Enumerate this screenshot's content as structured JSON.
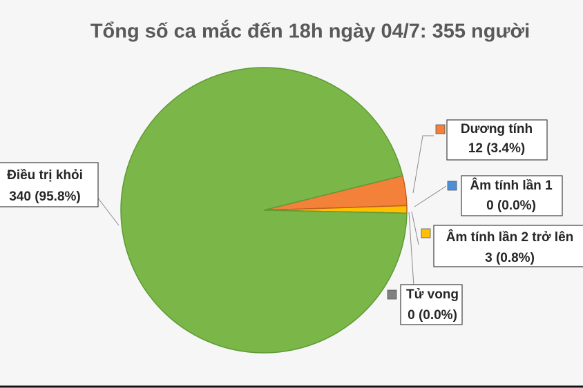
{
  "chart_data": {
    "type": "pie",
    "title": "Tổng số ca mắc đến 18h ngày 04/7: 355 người",
    "categories": [
      "Dương tính",
      "Âm tính lần 1",
      "Âm tính lần 2 trở lên",
      "Tử vong",
      "Điều trị khỏi"
    ],
    "values": [
      12,
      0,
      3,
      0,
      340
    ],
    "value_labels": [
      "12 (3.4%)",
      "0 (0.0%)",
      "3 (0.8%)",
      "0 (0.0%)",
      "340 (95.8%)"
    ],
    "colors": [
      "#f4813a",
      "#4a90d9",
      "#ffc000",
      "#808080",
      "#7ab648"
    ]
  }
}
